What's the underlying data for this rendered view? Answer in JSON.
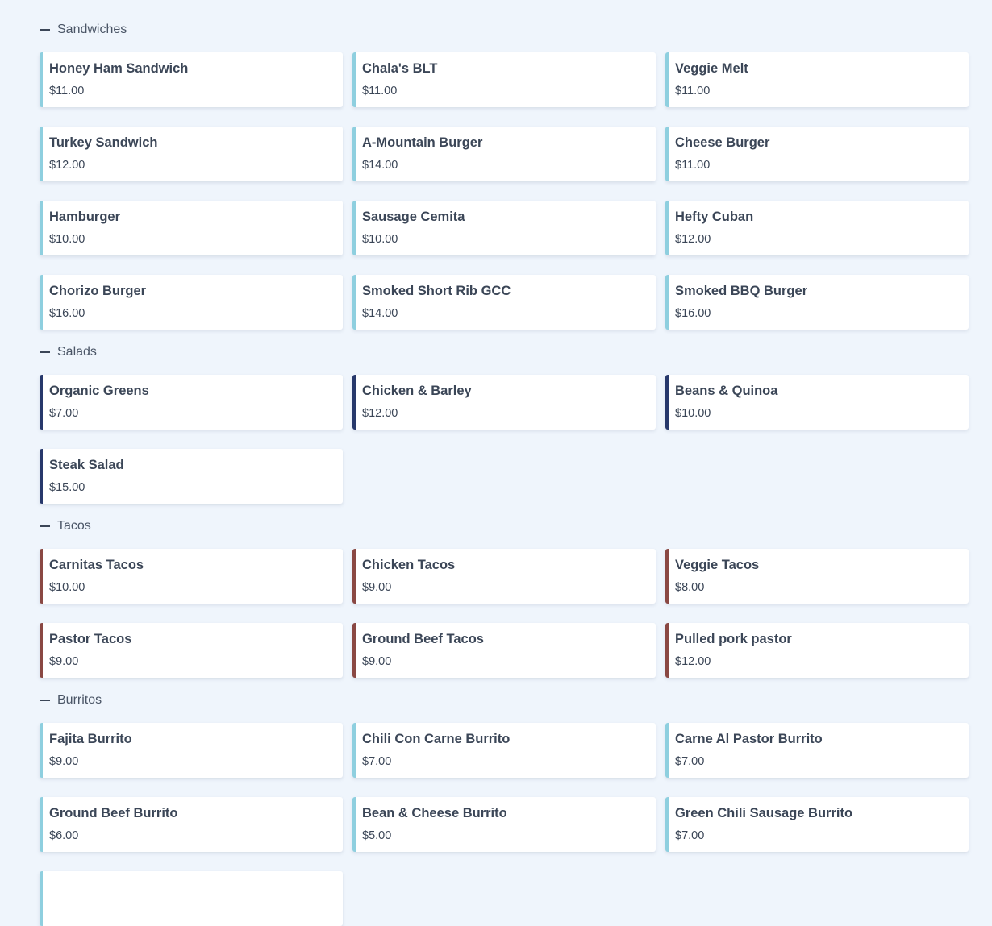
{
  "colors": {
    "background": "#eff5fc",
    "sandwiches": "#8ecfdf",
    "salads": "#27386b",
    "tacos": "#8a4843",
    "burritos": "#8ecfdf"
  },
  "sections": [
    {
      "title": "Sandwiches",
      "color": "#8ecfdf",
      "items": [
        {
          "name": "Honey Ham Sandwich",
          "price": "$11.00"
        },
        {
          "name": "Chala's BLT",
          "price": "$11.00"
        },
        {
          "name": "Veggie Melt",
          "price": "$11.00"
        },
        {
          "name": "Turkey Sandwich",
          "price": "$12.00"
        },
        {
          "name": "A-Mountain Burger",
          "price": "$14.00"
        },
        {
          "name": "Cheese Burger",
          "price": "$11.00"
        },
        {
          "name": "Hamburger",
          "price": "$10.00"
        },
        {
          "name": "Sausage Cemita",
          "price": "$10.00"
        },
        {
          "name": "Hefty Cuban",
          "price": "$12.00"
        },
        {
          "name": "Chorizo Burger",
          "price": "$16.00"
        },
        {
          "name": "Smoked Short Rib GCC",
          "price": "$14.00"
        },
        {
          "name": "Smoked BBQ Burger",
          "price": "$16.00"
        }
      ]
    },
    {
      "title": "Salads",
      "color": "#27386b",
      "items": [
        {
          "name": "Organic Greens",
          "price": "$7.00"
        },
        {
          "name": "Chicken & Barley",
          "price": "$12.00"
        },
        {
          "name": "Beans & Quinoa",
          "price": "$10.00"
        },
        {
          "name": "Steak Salad",
          "price": "$15.00"
        }
      ]
    },
    {
      "title": "Tacos",
      "color": "#8a4843",
      "items": [
        {
          "name": "Carnitas Tacos",
          "price": "$10.00"
        },
        {
          "name": "Chicken Tacos",
          "price": "$9.00"
        },
        {
          "name": "Veggie Tacos",
          "price": "$8.00"
        },
        {
          "name": "Pastor Tacos",
          "price": "$9.00"
        },
        {
          "name": "Ground Beef Tacos",
          "price": "$9.00"
        },
        {
          "name": "Pulled pork pastor",
          "price": "$12.00"
        }
      ]
    },
    {
      "title": "Burritos",
      "color": "#8ecfdf",
      "items": [
        {
          "name": "Fajita Burrito",
          "price": "$9.00"
        },
        {
          "name": "Chili Con Carne Burrito",
          "price": "$7.00"
        },
        {
          "name": "Carne Al Pastor Burrito",
          "price": "$7.00"
        },
        {
          "name": "Ground Beef Burrito",
          "price": "$6.00"
        },
        {
          "name": "Bean & Cheese Burrito",
          "price": "$5.00"
        },
        {
          "name": "Green Chili Sausage Burrito",
          "price": "$7.00"
        },
        {
          "name": "",
          "price": ""
        }
      ]
    }
  ]
}
